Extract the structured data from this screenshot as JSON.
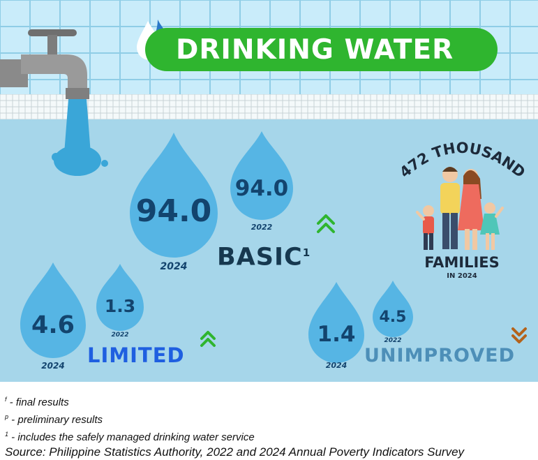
{
  "title": "DRINKING WATER",
  "icons": {
    "faucet": "faucet-icon",
    "title_drops": "water-drops-icon",
    "family": "family-illustration",
    "arrow_up": "double-chevron-up-icon",
    "arrow_down": "double-chevron-down-icon"
  },
  "colors": {
    "background": "#a6d6ea",
    "tiles": "#c9ecfa",
    "drop": "#56b5e4",
    "title_pill": "#2fb52f",
    "up_arrow": "#2fb52f",
    "down_arrow": "#b4631b",
    "value_text": "#13446e"
  },
  "categories": [
    {
      "key": "basic",
      "label": "BASIC",
      "footnote_marker": "1",
      "trend": "up",
      "current": {
        "value": "94.0",
        "year": "2024"
      },
      "previous": {
        "value": "94.0",
        "year": "2022"
      }
    },
    {
      "key": "limited",
      "label": "LIMITED",
      "trend": "up",
      "current": {
        "value": "4.6",
        "year": "2024"
      },
      "previous": {
        "value": "1.3",
        "year": "2022"
      }
    },
    {
      "key": "unimproved",
      "label": "UNIMPROVED",
      "trend": "down",
      "current": {
        "value": "1.4",
        "year": "2024"
      },
      "previous": {
        "value": "4.5",
        "year": "2022"
      }
    }
  ],
  "families": {
    "headline": "472 THOUSAND",
    "label": "FAMILIES",
    "sub": "IN 2024"
  },
  "footnotes": [
    {
      "marker": "f",
      "text": " - final results"
    },
    {
      "marker": "p",
      "text": " - preliminary results"
    },
    {
      "marker": "1",
      "text": " - includes the safely managed drinking water service"
    }
  ],
  "source": "Source: Philippine Statistics Authority, 2022 and 2024 Annual Poverty Indicators Survey"
}
